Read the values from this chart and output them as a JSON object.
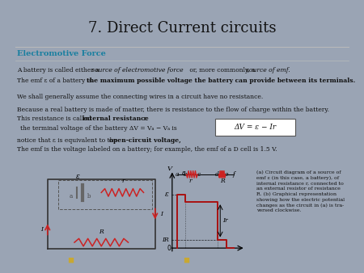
{
  "title": "7. Direct Current circuits",
  "subtitle": "Electromotive Force",
  "bg_color": "#9aa4b4",
  "slide_bg": "#f0ede8",
  "title_color": "#111111",
  "subtitle_color": "#1a7fa0",
  "body_color": "#111111",
  "formula": "ΔV = ε − Ir",
  "caption_a": "(a) Circuit diagram of a source of\nemf ε (in this case, a battery), of\ninternal resistance r, connected to\nan external resistor of resistance\nR. (b) Graphical representation\nshowing how the electric potential\nchanges as the circuit in (a) is tra-\nversed clockwise.",
  "resistor_color": "#cc2222",
  "arrow_color": "#aa1111",
  "wire_color": "#333333",
  "nav_dot_color": "#c8a832"
}
